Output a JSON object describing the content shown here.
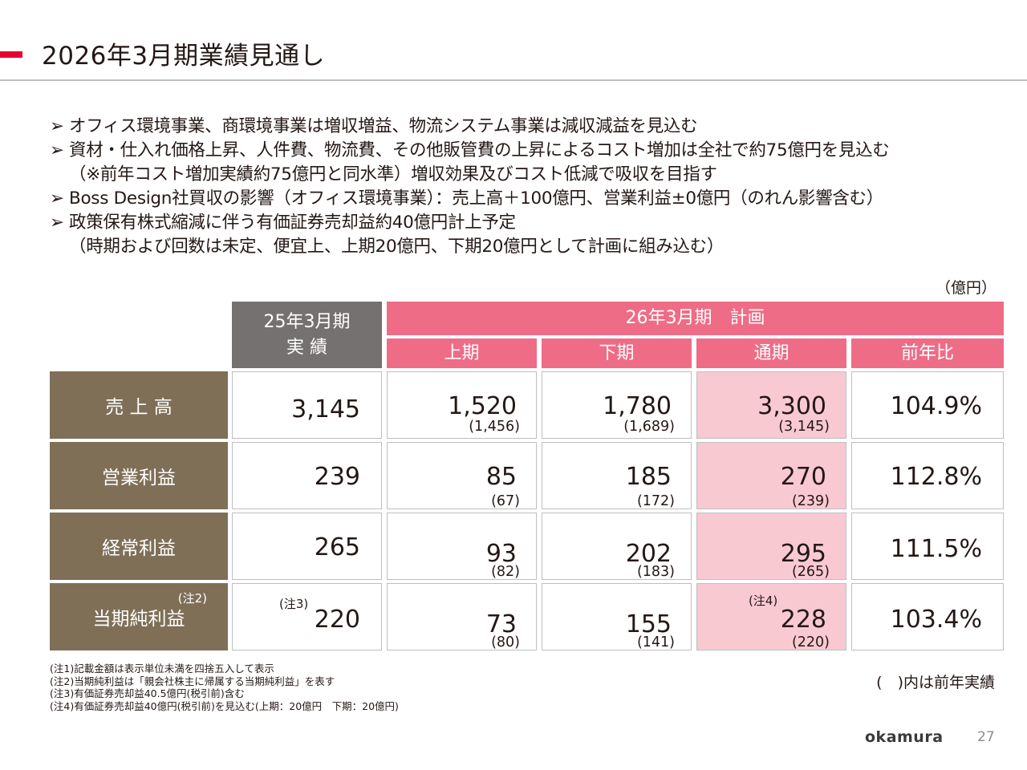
{
  "title": "2026年3月期業績見通し",
  "bullets": [
    {
      "arrow": "➢",
      "text": "オフィス環境事業、商環境事業は増収増益、物流システム事業は減収減益を見込む"
    },
    {
      "arrow": "➢",
      "text": "資材・仕入れ価格上昇、人件費、物流費、その他販管費の上昇によるコスト増加は全社で約75億円を見込む"
    },
    {
      "arrow": "",
      "text": "（※前年コスト増加実績約75億円と同水準）増収効果及びコスト低減で吸収を目指す"
    },
    {
      "arrow": "➢",
      "text": "Boss Design社買収の影響（オフィス環境事業）：売上高＋100億円、営業利益±0億円（のれん影響含む）"
    },
    {
      "arrow": "➢",
      "text": "政策保有株式縮減に伴う有価証券売却益約40億円計上予定"
    },
    {
      "arrow": "",
      "text": "（時期および回数は未定、便宜上、上期20億円、下期20億円として計画に組み込む）"
    }
  ],
  "table": {
    "unit": "（億円）",
    "header_actual_line1": "25年3月期",
    "header_actual_line2": "実 績",
    "header_plan": "26年3月期　計画",
    "col_h1": "上期",
    "col_h2": "下期",
    "col_full": "通期",
    "col_yoy": "前年比",
    "rows": [
      {
        "label": "売 上 高",
        "label_note": "",
        "actual": "3,145",
        "actual_note": "",
        "h1": "1,520",
        "h1_prev": "(1,456)",
        "h2": "1,780",
        "h2_prev": "(1,689)",
        "full": "3,300",
        "full_prev": "(3,145)",
        "full_note": "",
        "yoy": "104.9%"
      },
      {
        "label": "営業利益",
        "label_note": "",
        "actual": "239",
        "actual_note": "",
        "h1": "85",
        "h1_prev": "(67)",
        "h2": "185",
        "h2_prev": "(172)",
        "full": "270",
        "full_prev": "(239)",
        "full_note": "",
        "yoy": "112.8%"
      },
      {
        "label": "経常利益",
        "label_note": "",
        "actual": "265",
        "actual_note": "",
        "h1": "93",
        "h1_prev": "(82)",
        "h2": "202",
        "h2_prev": "(183)",
        "full": "295",
        "full_prev": "(265)",
        "full_note": "",
        "yoy": "111.5%"
      },
      {
        "label": "当期純利益",
        "label_note": "(注2)",
        "actual": "220",
        "actual_note": "(注3)",
        "h1": "73",
        "h1_prev": "(80)",
        "h2": "155",
        "h2_prev": "(141)",
        "full": "228",
        "full_prev": "(220)",
        "full_note": "(注4)",
        "yoy": "103.4%"
      }
    ]
  },
  "footnotes": [
    "(注1)記載金額は表示単位未満を四捨五入して表示",
    "(注2)当期純利益は「親会社株主に帰属する当期純利益」を表す",
    "(注3)有価証券売却益40.5億円(税引前)含む",
    "(注4)有価証券売却益40億円(税引前)を見込む(上期：20億円　下期：20億円)"
  ],
  "legend": "(　)内は前年実績",
  "logo": "okamura",
  "page_number": "27",
  "colors": {
    "accent": "#e60033",
    "header_gray": "#767171",
    "header_pink": "#ee6c86",
    "row_label": "#7f6f57",
    "highlight": "#f9c9d2"
  }
}
